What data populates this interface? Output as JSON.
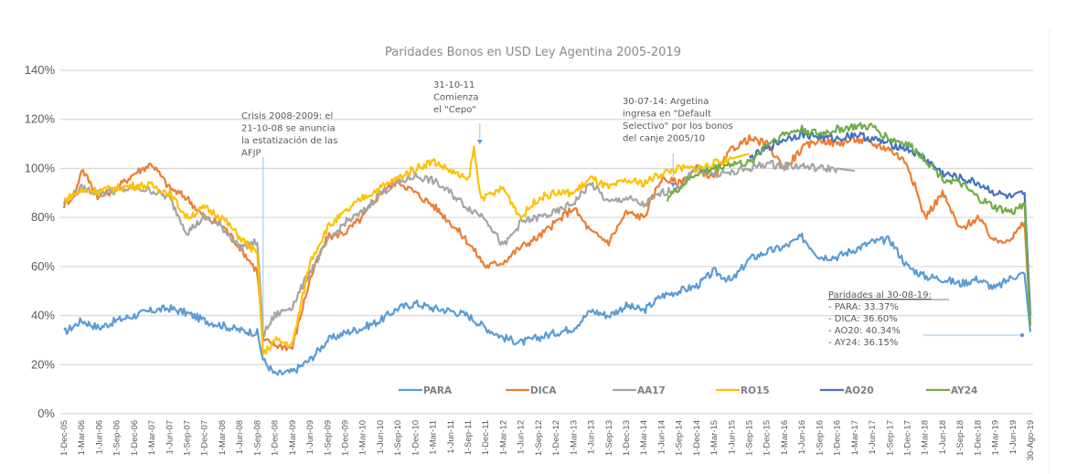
{
  "chart_data": {
    "type": "line",
    "title": "Paridades Bonos en USD Ley Agentina 2005-2019",
    "xlabel": "",
    "ylabel": "",
    "ylim": [
      0,
      140
    ],
    "y_ticks": [
      "0%",
      "20%",
      "40%",
      "60%",
      "80%",
      "100%",
      "120%",
      "140%"
    ],
    "y_tick_values": [
      0,
      20,
      40,
      60,
      80,
      100,
      120,
      140
    ],
    "grid": true,
    "legend_position": "bottom-inside",
    "x_ticks": [
      "1-Dec-05",
      "1-Mar-06",
      "1-Jun-06",
      "1-Sep-06",
      "1-Dec-06",
      "1-Mar-07",
      "1-Jun-07",
      "1-Sep-07",
      "1-Dec-07",
      "1-Mar-08",
      "1-Jun-08",
      "1-Sep-08",
      "1-Dec-08",
      "1-Mar-09",
      "1-Jun-09",
      "1-Sep-09",
      "1-Dec-09",
      "1-Mar-10",
      "1-Jun-10",
      "1-Sep-10",
      "1-Dec-10",
      "1-Mar-11",
      "1-Jun-11",
      "1-Sep-11",
      "1-Dec-11",
      "1-Mar-12",
      "1-Jun-12",
      "1-Sep-12",
      "1-Dec-12",
      "1-Mar-13",
      "1-Jun-13",
      "1-Sep-13",
      "1-Dec-13",
      "1-Mar-14",
      "1-Jun-14",
      "1-Sep-14",
      "1-Dec-14",
      "1-Mar-15",
      "1-Jun-15",
      "1-Sep-15",
      "1-Dec-15",
      "1-Mar-16",
      "1-Jun-16",
      "1-Sep-16",
      "1-Dec-16",
      "1-Mar-17",
      "1-Jun-17",
      "1-Sep-17",
      "1-Dec-17",
      "1-Mar-18",
      "1-Jun-18",
      "1-Sep-18",
      "1-Dec-18",
      "1-Mar-19",
      "1-Jun-19",
      "30-Ago-19"
    ],
    "x_range_months": [
      0,
      165
    ],
    "series": [
      {
        "name": "PARA",
        "color": "#5b9bd5",
        "x_months": [
          0,
          3,
          6,
          9,
          12,
          15,
          18,
          21,
          24,
          27,
          30,
          33,
          34,
          36,
          39,
          42,
          45,
          48,
          51,
          54,
          57,
          60,
          63,
          66,
          69,
          72,
          75,
          78,
          81,
          84,
          87,
          90,
          93,
          96,
          99,
          102,
          105,
          108,
          111,
          114,
          117,
          120,
          123,
          126,
          129,
          132,
          135,
          138,
          141,
          144,
          147,
          150,
          153,
          156,
          159,
          162,
          164,
          165
        ],
        "values": [
          33,
          38,
          35,
          38,
          40,
          42,
          43,
          41,
          38,
          36,
          34,
          33,
          22,
          16,
          17,
          22,
          30,
          33,
          35,
          38,
          43,
          45,
          43,
          42,
          40,
          35,
          31,
          29,
          31,
          33,
          35,
          42,
          40,
          44,
          42,
          48,
          50,
          52,
          58,
          54,
          63,
          66,
          68,
          72,
          64,
          64,
          67,
          70,
          71,
          60,
          56,
          55,
          53,
          55,
          51,
          56,
          57,
          33.37
        ]
      },
      {
        "name": "DICA",
        "color": "#ed7d31",
        "x_months": [
          0,
          2,
          3,
          5,
          6,
          9,
          12,
          15,
          18,
          21,
          24,
          27,
          30,
          33,
          34,
          36,
          39,
          42,
          45,
          48,
          51,
          54,
          57,
          60,
          63,
          66,
          69,
          72,
          75,
          78,
          81,
          84,
          87,
          90,
          93,
          96,
          99,
          102,
          105,
          108,
          111,
          114,
          117,
          120,
          123,
          126,
          129,
          132,
          135,
          138,
          141,
          144,
          147,
          150,
          153,
          156,
          159,
          162,
          164,
          165
        ],
        "values": [
          85,
          90,
          100,
          92,
          88,
          92,
          98,
          102,
          92,
          88,
          80,
          77,
          68,
          58,
          30,
          28,
          27,
          55,
          72,
          74,
          80,
          90,
          95,
          90,
          85,
          78,
          70,
          60,
          62,
          68,
          72,
          78,
          84,
          74,
          70,
          82,
          80,
          96,
          94,
          100,
          96,
          108,
          112,
          110,
          100,
          108,
          112,
          110,
          112,
          110,
          108,
          102,
          80,
          90,
          75,
          80,
          70,
          72,
          78,
          36.6
        ]
      },
      {
        "name": "AA17",
        "color": "#a5a5a5",
        "x_months": [
          0,
          3,
          6,
          9,
          12,
          15,
          18,
          21,
          24,
          27,
          30,
          33,
          34,
          36,
          39,
          42,
          45,
          48,
          51,
          54,
          57,
          60,
          63,
          66,
          69,
          72,
          75,
          78,
          81,
          84,
          87,
          90,
          93,
          96,
          99,
          102,
          105,
          108,
          111,
          114,
          117,
          120,
          123,
          126,
          129,
          132,
          135
        ],
        "values": [
          86,
          92,
          90,
          91,
          92,
          91,
          88,
          74,
          80,
          76,
          68,
          70,
          32,
          40,
          44,
          58,
          70,
          78,
          82,
          90,
          94,
          97,
          95,
          90,
          84,
          80,
          68,
          78,
          80,
          82,
          86,
          94,
          86,
          88,
          85,
          90,
          92,
          100,
          98,
          98,
          100,
          102,
          101,
          101,
          100,
          100,
          99
        ]
      },
      {
        "name": "RO15",
        "color": "#ffc000",
        "x_months": [
          0,
          3,
          6,
          9,
          12,
          15,
          18,
          21,
          24,
          27,
          30,
          33,
          34,
          36,
          39,
          42,
          45,
          48,
          51,
          54,
          57,
          60,
          63,
          66,
          69,
          70,
          71,
          72,
          75,
          78,
          81,
          84,
          87,
          90,
          93,
          96,
          99,
          102,
          105,
          108,
          111,
          114,
          117
        ],
        "values": [
          87,
          91,
          91,
          92,
          93,
          93,
          90,
          80,
          84,
          80,
          72,
          65,
          24,
          30,
          28,
          62,
          76,
          82,
          88,
          92,
          96,
          100,
          103,
          99,
          95,
          108,
          90,
          88,
          92,
          80,
          88,
          90,
          90,
          96,
          92,
          95,
          94,
          98,
          100,
          100,
          102,
          104,
          106
        ]
      },
      {
        "name": "AO20",
        "color": "#4472c4",
        "x_months": [
          117,
          120,
          123,
          126,
          129,
          132,
          135,
          138,
          141,
          144,
          147,
          150,
          153,
          156,
          159,
          162,
          164,
          165
        ],
        "values": [
          104,
          108,
          112,
          114,
          113,
          112,
          114,
          112,
          110,
          108,
          104,
          98,
          96,
          94,
          90,
          88,
          90,
          40.34
        ]
      },
      {
        "name": "AY24",
        "color": "#70ad47",
        "x_months": [
          103,
          105,
          108,
          111,
          114,
          117,
          120,
          123,
          126,
          129,
          132,
          135,
          138,
          141,
          144,
          147,
          150,
          153,
          156,
          159,
          162,
          164,
          165
        ],
        "values": [
          88,
          92,
          98,
          100,
          102,
          102,
          110,
          114,
          116,
          114,
          116,
          117,
          117,
          112,
          110,
          104,
          96,
          94,
          88,
          84,
          82,
          86,
          36.15
        ]
      }
    ],
    "annotations": [
      {
        "id": "crisis",
        "lines": [
          "Crisis 2008-2009: el",
          "21-10-08 se anuncia",
          "la estatización de las",
          "AFJP"
        ],
        "target_month": 34
      },
      {
        "id": "cepo",
        "lines": [
          "31-10-11",
          "Comienza",
          "el \"Cepo\""
        ],
        "target_month": 71
      },
      {
        "id": "default",
        "lines": [
          "30-07-14: Argetina",
          "ingresa en \"Default",
          "Selectivo\" por los bonos",
          "del canje 2005/10"
        ],
        "target_month": 104
      },
      {
        "id": "paridades",
        "heading": "Paridades al 30-08-19:",
        "lines": [
          "- PARA: 33.37%",
          "- DICA: 36.60%",
          "- AO20: 40.34%",
          "- AY24: 36.15%"
        ],
        "target_month": 165
      }
    ]
  }
}
